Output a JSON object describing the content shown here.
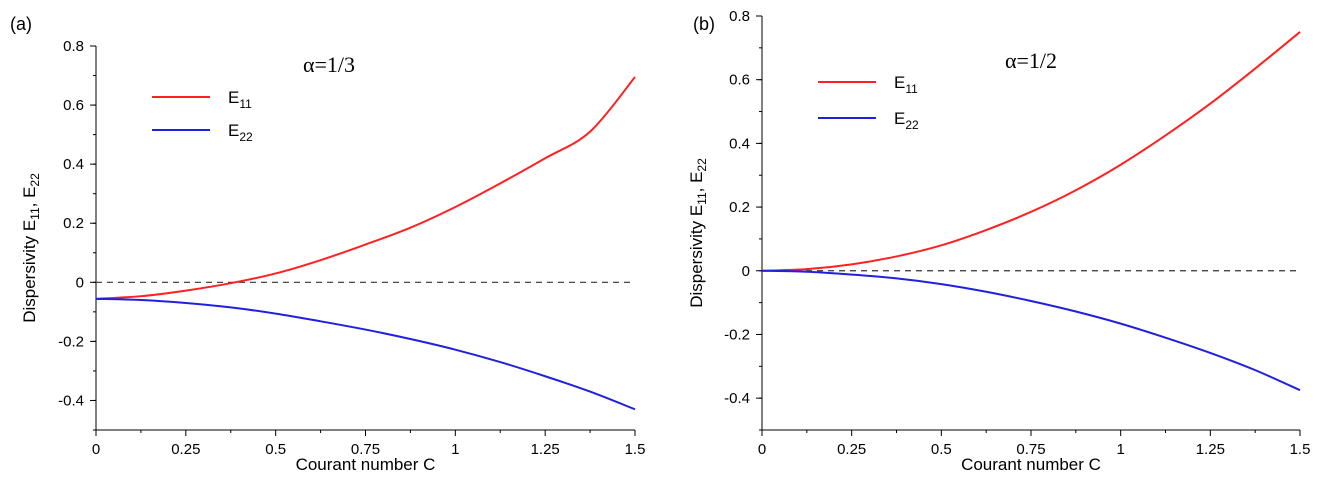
{
  "chart_data": [
    {
      "type": "line",
      "panel_label": "(a)",
      "annotation": "α=1/3",
      "xlabel": "Courant number C",
      "ylabel": "Dispersivity E11, E22",
      "ylabel_parts": {
        "prefix": "Dispersivity E",
        "sub1": "11",
        "sep": ", E",
        "sub2": "22"
      },
      "xlim": [
        0,
        1.5
      ],
      "ylim": [
        -0.5,
        0.8
      ],
      "xticks": [
        0,
        0.25,
        0.5,
        0.75,
        1,
        1.25,
        1.5
      ],
      "xtick_labels": [
        "0",
        "0.25",
        "0.5",
        "0.75",
        "1",
        "1.25",
        "1.5"
      ],
      "yticks": [
        -0.4,
        -0.2,
        0,
        0.2,
        0.4,
        0.6,
        0.8
      ],
      "ytick_labels": [
        "-0.4",
        "-0.2",
        "0",
        "0.2",
        "0.4",
        "0.6",
        "0.8"
      ],
      "zero_line": {
        "y": 0,
        "style": "dashed"
      },
      "legend_position": "top-left",
      "x": [
        0,
        0.125,
        0.25,
        0.375,
        0.5,
        0.625,
        0.75,
        0.875,
        1,
        1.125,
        1.25,
        1.375,
        1.5
      ],
      "series": [
        {
          "name": "E11",
          "label_base": "E",
          "label_sub": "11",
          "color": "#ff2020",
          "values": [
            -0.056,
            -0.047,
            -0.028,
            -0.003,
            0.03,
            0.075,
            0.128,
            0.185,
            0.255,
            0.335,
            0.42,
            0.51,
            0.695
          ]
        },
        {
          "name": "E22",
          "label_base": "E",
          "label_sub": "22",
          "color": "#2020e0",
          "values": [
            -0.056,
            -0.06,
            -0.07,
            -0.085,
            -0.106,
            -0.132,
            -0.16,
            -0.192,
            -0.228,
            -0.27,
            -0.318,
            -0.37,
            -0.43
          ]
        }
      ]
    },
    {
      "type": "line",
      "panel_label": "(b)",
      "annotation": "α=1/2",
      "xlabel": "Courant number C",
      "ylabel": "Dispersivity E11, E22",
      "ylabel_parts": {
        "prefix": "Dispersivity E",
        "sub1": "11",
        "sep": ", E",
        "sub2": "22"
      },
      "xlim": [
        0,
        1.5
      ],
      "ylim": [
        -0.5,
        0.8
      ],
      "xticks": [
        0,
        0.25,
        0.5,
        0.75,
        1,
        1.25,
        1.5
      ],
      "xtick_labels": [
        "0",
        "0.25",
        "0.5",
        "0.75",
        "1",
        "1.25",
        "1.5"
      ],
      "yticks": [
        -0.4,
        -0.2,
        0,
        0.2,
        0.4,
        0.6,
        0.8
      ],
      "ytick_labels": [
        "-0.4",
        "-0.2",
        "0",
        "0.2",
        "0.4",
        "0.6",
        "0.8"
      ],
      "zero_line": {
        "y": 0,
        "style": "dashed"
      },
      "legend_position": "top-left",
      "x": [
        0,
        0.125,
        0.25,
        0.375,
        0.5,
        0.625,
        0.75,
        0.875,
        1,
        1.125,
        1.25,
        1.375,
        1.5
      ],
      "series": [
        {
          "name": "E11",
          "label_base": "E",
          "label_sub": "11",
          "color": "#ff2020",
          "values": [
            0,
            0.005,
            0.02,
            0.045,
            0.08,
            0.128,
            0.185,
            0.253,
            0.333,
            0.425,
            0.525,
            0.635,
            0.75
          ]
        },
        {
          "name": "E22",
          "label_base": "E",
          "label_sub": "22",
          "color": "#2020e0",
          "values": [
            0,
            -0.003,
            -0.012,
            -0.024,
            -0.042,
            -0.066,
            -0.095,
            -0.128,
            -0.166,
            -0.21,
            -0.258,
            -0.312,
            -0.375
          ]
        }
      ]
    }
  ]
}
